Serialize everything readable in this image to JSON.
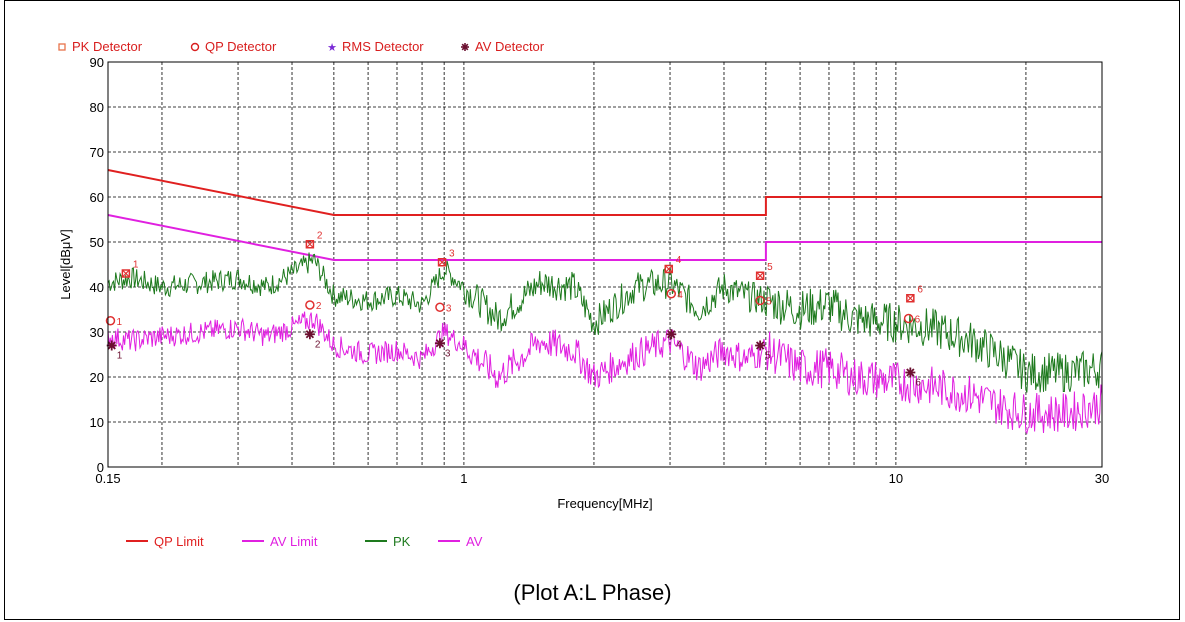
{
  "caption": "(Plot A:L Phase)",
  "detector_legend": [
    {
      "symbol": "square",
      "label": "PK Detector",
      "color": "#e8734a"
    },
    {
      "symbol": "circle",
      "label": "QP Detector",
      "color": "#d81e1e"
    },
    {
      "symbol": "star",
      "label": "RMS Detector",
      "color": "#7a2bd6"
    },
    {
      "symbol": "asterisk",
      "label": "AV Detector",
      "color": "#6b1030"
    }
  ],
  "colors": {
    "qp_limit": "#e02020",
    "av_limit": "#e020e0",
    "pk": "#1e7a1e",
    "av": "#e020e0",
    "marker_pk": "#e03030",
    "marker_qp": "#e03030",
    "marker_av": "#6b1030",
    "grid": "#000000"
  },
  "chart_data": {
    "type": "line",
    "xscale": "log",
    "xlabel": "Frequency[MHz]",
    "ylabel": "Level[dBμV]",
    "xlim": [
      0.15,
      30
    ],
    "ylim": [
      0,
      90
    ],
    "xticks": [
      0.15,
      1,
      10,
      30
    ],
    "xtick_labels": [
      "0.15",
      "1",
      "10",
      "30"
    ],
    "yticks": [
      0,
      10,
      20,
      30,
      40,
      50,
      60,
      70,
      80,
      90
    ],
    "ytick_labels": [
      "0",
      "10",
      "20",
      "30",
      "40",
      "50",
      "60",
      "70",
      "80",
      "90"
    ],
    "grid": true,
    "legend": [
      {
        "label": "QP Limit",
        "color": "#e02020"
      },
      {
        "label": "AV Limit",
        "color": "#e020e0"
      },
      {
        "label": "PK",
        "color": "#1e7a1e"
      },
      {
        "label": "AV",
        "color": "#e020e0"
      }
    ],
    "series": [
      {
        "name": "QP Limit",
        "x": [
          0.15,
          0.5,
          0.5,
          5,
          5,
          30
        ],
        "y": [
          66,
          56,
          56,
          56,
          60,
          60
        ]
      },
      {
        "name": "AV Limit",
        "x": [
          0.15,
          0.5,
          0.5,
          5,
          5,
          30
        ],
        "y": [
          56,
          46,
          46,
          46,
          50,
          50
        ]
      },
      {
        "name": "PK",
        "x": [
          0.15,
          0.17,
          0.2,
          0.25,
          0.3,
          0.35,
          0.4,
          0.45,
          0.5,
          0.6,
          0.7,
          0.8,
          0.9,
          1.0,
          1.2,
          1.5,
          1.8,
          2.0,
          2.5,
          3.0,
          3.5,
          4.0,
          4.5,
          5.0,
          6.0,
          7.0,
          8.0,
          10.0,
          12.0,
          15.0,
          18.0,
          20.0,
          25.0,
          30.0
        ],
        "y": [
          41,
          42,
          40,
          41,
          42,
          40,
          43,
          46,
          38,
          37,
          38,
          36,
          44,
          40,
          33,
          41,
          40,
          32,
          40,
          41,
          35,
          40,
          38,
          37,
          35,
          36,
          33,
          32,
          31,
          28,
          24,
          21,
          21,
          22
        ]
      },
      {
        "name": "AV",
        "x": [
          0.15,
          0.17,
          0.2,
          0.25,
          0.3,
          0.35,
          0.4,
          0.45,
          0.5,
          0.6,
          0.7,
          0.8,
          0.9,
          1.0,
          1.2,
          1.5,
          1.8,
          2.0,
          2.5,
          3.0,
          3.5,
          4.0,
          4.5,
          5.0,
          6.0,
          7.0,
          8.0,
          10.0,
          12.0,
          15.0,
          18.0,
          20.0,
          25.0,
          30.0
        ],
        "y": [
          29,
          28,
          29,
          30,
          31,
          29,
          31,
          33,
          27,
          25,
          26,
          24,
          30,
          27,
          20,
          28,
          26,
          20,
          25,
          28,
          22,
          26,
          24,
          26,
          22,
          22,
          20,
          19,
          18,
          16,
          13,
          12,
          12,
          14
        ]
      }
    ],
    "markers": [
      {
        "type": "PK",
        "label": "1",
        "x": 0.165,
        "y": 43
      },
      {
        "type": "PK",
        "label": "2",
        "x": 0.44,
        "y": 49.5
      },
      {
        "type": "PK",
        "label": "3",
        "x": 0.89,
        "y": 45.5
      },
      {
        "type": "PK",
        "label": "4",
        "x": 2.98,
        "y": 44
      },
      {
        "type": "PK",
        "label": "5",
        "x": 4.85,
        "y": 42.5
      },
      {
        "type": "PK",
        "label": "6",
        "x": 10.8,
        "y": 37.5
      },
      {
        "type": "QP",
        "label": "1",
        "x": 0.152,
        "y": 32.5
      },
      {
        "type": "QP",
        "label": "2",
        "x": 0.44,
        "y": 36
      },
      {
        "type": "QP",
        "label": "3",
        "x": 0.88,
        "y": 35.5
      },
      {
        "type": "QP",
        "label": "4",
        "x": 3.02,
        "y": 38.5
      },
      {
        "type": "QP",
        "label": "5",
        "x": 4.85,
        "y": 37
      },
      {
        "type": "QP",
        "label": "6",
        "x": 10.7,
        "y": 33
      },
      {
        "type": "AV",
        "label": "1",
        "x": 0.153,
        "y": 27
      },
      {
        "type": "AV",
        "label": "2",
        "x": 0.44,
        "y": 29.5
      },
      {
        "type": "AV",
        "label": "3",
        "x": 0.88,
        "y": 27.5
      },
      {
        "type": "AV",
        "label": "4",
        "x": 3.02,
        "y": 29.5
      },
      {
        "type": "AV",
        "label": "5",
        "x": 4.85,
        "y": 27
      },
      {
        "type": "AV",
        "label": "6",
        "x": 10.8,
        "y": 21
      }
    ]
  }
}
